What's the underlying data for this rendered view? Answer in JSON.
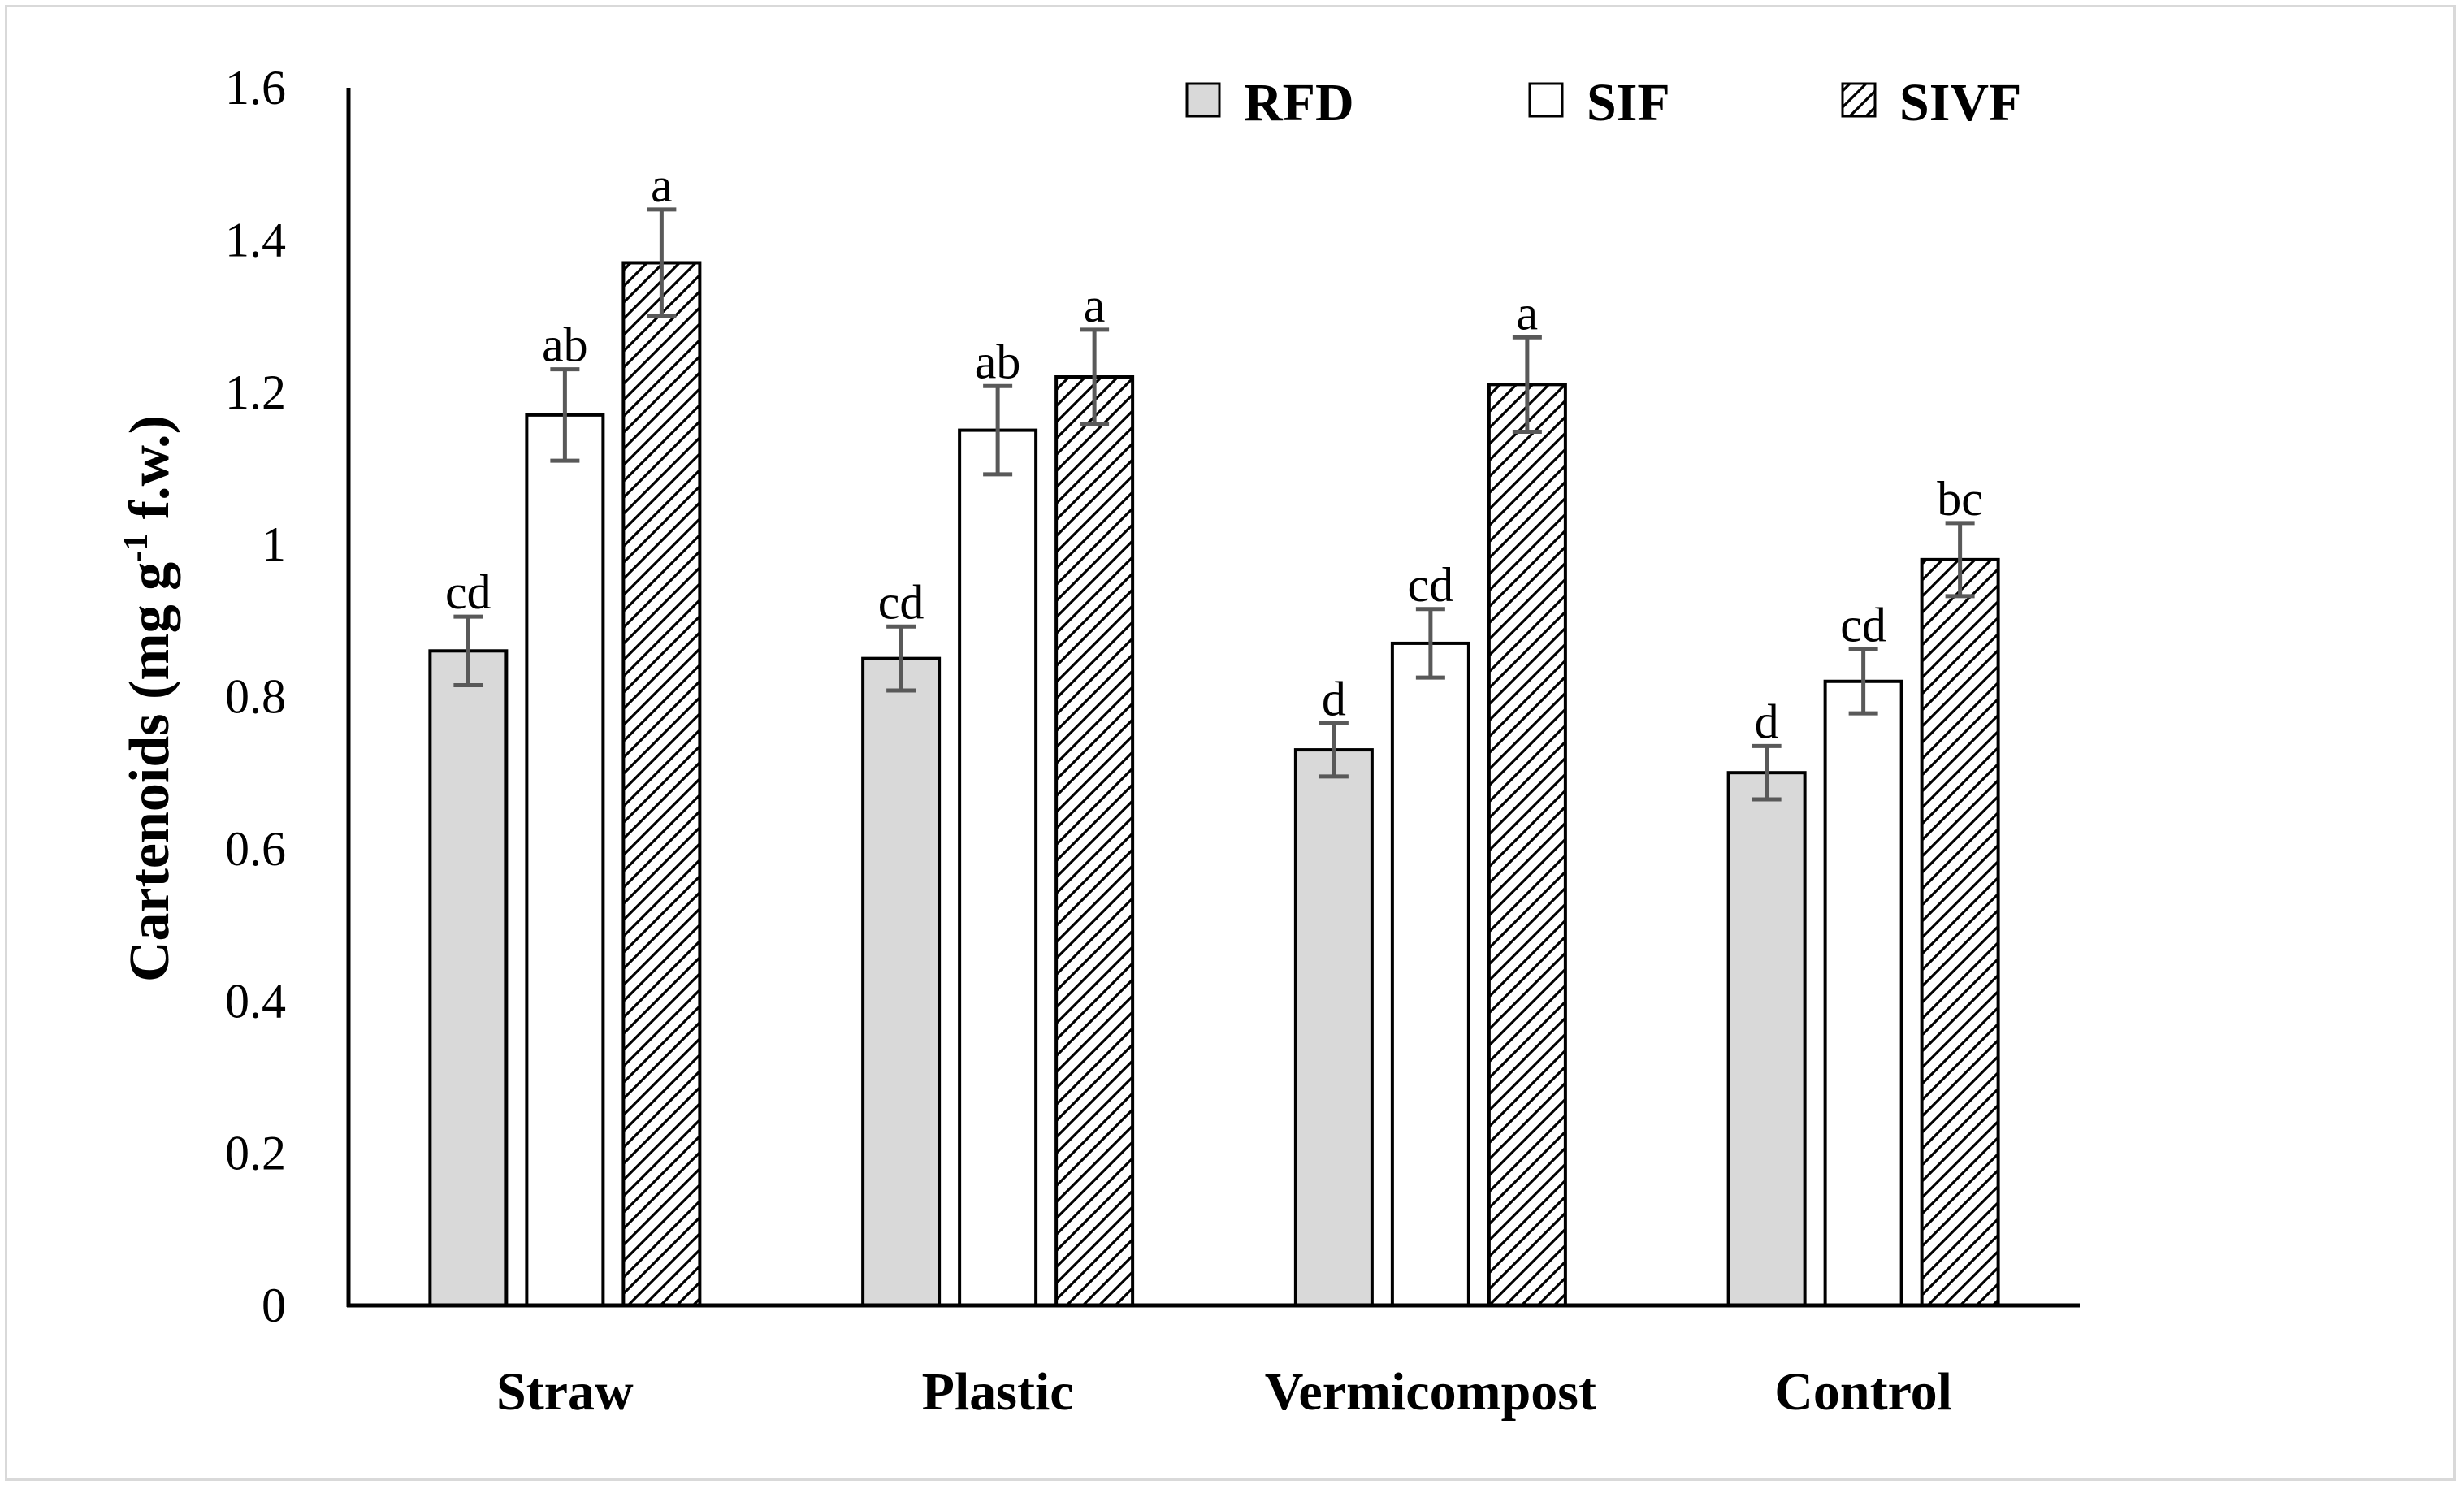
{
  "chart_data": {
    "type": "bar",
    "title": "",
    "xlabel": "",
    "ylabel": "Cartenoids (mg g-1 f.w.)",
    "ylabel_parts": {
      "main": "Cartenoids (mg g",
      "sup": "-1",
      "tail": " f.w.)"
    },
    "ylim": [
      0,
      1.6
    ],
    "yticks": [
      "0",
      "0.2",
      "0.4",
      "0.6",
      "0.8",
      "1",
      "1.2",
      "1.4",
      "1.6"
    ],
    "ytick_values": [
      0,
      0.2,
      0.4,
      0.6,
      0.8,
      1.0,
      1.2,
      1.4,
      1.6
    ],
    "categories": [
      "Straw",
      "Plastic",
      "Vermicompost",
      "Control"
    ],
    "legend_position": "top",
    "grid": false,
    "series": [
      {
        "name": "RFD",
        "style": "gray",
        "fill": "#d9d9d9",
        "values": [
          0.86,
          0.85,
          0.73,
          0.7
        ],
        "errors": [
          0.045,
          0.042,
          0.035,
          0.035
        ],
        "labels": [
          "cd",
          "cd",
          "d",
          "d"
        ]
      },
      {
        "name": "SIF",
        "style": "white",
        "fill": "#ffffff",
        "values": [
          1.17,
          1.15,
          0.87,
          0.82
        ],
        "errors": [
          0.06,
          0.058,
          0.045,
          0.042
        ],
        "labels": [
          "ab",
          "ab",
          "cd",
          "cd"
        ]
      },
      {
        "name": "SIVF",
        "style": "hatch",
        "fill": "#ffffff",
        "values": [
          1.37,
          1.22,
          1.21,
          0.98
        ],
        "errors": [
          0.07,
          0.062,
          0.062,
          0.048
        ],
        "labels": [
          "a",
          "a",
          "a",
          "bc"
        ]
      }
    ]
  },
  "colors": {
    "axis": "#000000",
    "error_bar": "#595959",
    "bar_edge": "#000000",
    "frame": "#d9d9d9"
  }
}
